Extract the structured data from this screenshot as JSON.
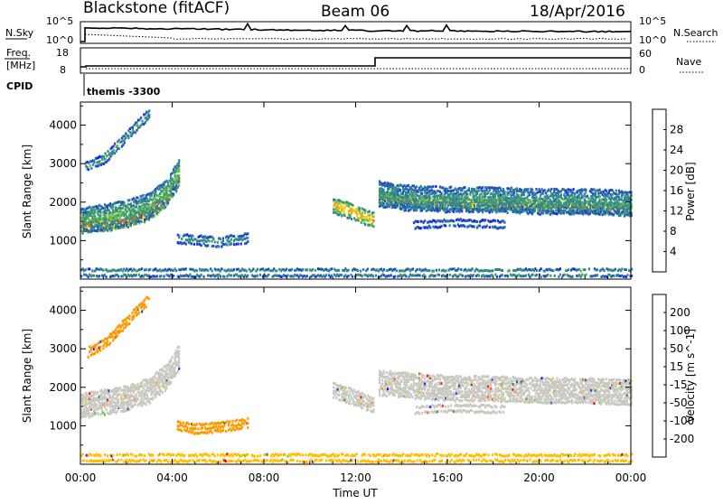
{
  "header": {
    "station": "Blackstone (fitACF)",
    "beam": "Beam 06",
    "date": "18/Apr/2016"
  },
  "panels": {
    "nsky_label": "N.Sky",
    "nsearch_label": "N.Search",
    "nsky_ticks": [
      "10^5",
      "10^0"
    ],
    "nsearch_ticks": [
      "10^5",
      "10^0"
    ],
    "freq_label": "Freq.",
    "freq_unit": "[MHz]",
    "freq_ticks": [
      "18",
      "8"
    ],
    "nave_label": "Nave",
    "nave_ticks": [
      "60",
      "0"
    ],
    "cpid_label": "CPID",
    "cpid_value": "themis -3300"
  },
  "colors": {
    "power": [
      "#1a1aff",
      "#2050c0",
      "#2e7f9a",
      "#3f9a70",
      "#6ec040",
      "#f0d020",
      "#f8a000",
      "#ff6000",
      "#ff2000",
      "#e00000"
    ],
    "velocity": [
      "#ff0000",
      "#ff5500",
      "#ff9900",
      "#ffbf00",
      "#c8c8c0",
      "#66cc33",
      "#2d8a4e",
      "#1f4fbf",
      "#1a1aff"
    ],
    "gray": "#c8c8c0"
  },
  "chart_data": [
    {
      "type": "heatmap",
      "name": "power",
      "ylabel": "Slant Range [km]",
      "yticks": [
        1000,
        2000,
        3000,
        4000
      ],
      "ylim": [
        0,
        4600
      ],
      "xlim": [
        0,
        24
      ],
      "colorbar_label": "Power [dB]",
      "colorbar_ticks": [
        4,
        8,
        12,
        16,
        20,
        24,
        28
      ],
      "features": [
        {
          "kind": "band",
          "x": [
            0.0,
            1.0,
            2.0,
            3.0,
            3.8,
            4.3
          ],
          "y": [
            1400,
            1400,
            1500,
            1700,
            2100,
            2600
          ],
          "width": 300,
          "level": 26
        },
        {
          "kind": "band",
          "x": [
            0.0,
            1.0,
            2.0,
            3.0,
            3.8,
            4.3
          ],
          "y": [
            1500,
            1600,
            1700,
            1900,
            2300,
            2800
          ],
          "width": 600,
          "level": 12
        },
        {
          "kind": "band",
          "x": [
            0.2,
            1.0,
            2.0,
            3.0
          ],
          "y": [
            2900,
            3100,
            3700,
            4300
          ],
          "width": 200,
          "level": 10
        },
        {
          "kind": "band",
          "x": [
            4.2,
            5.0,
            6.0,
            7.3
          ],
          "y": [
            1050,
            1000,
            950,
            1050
          ],
          "width": 200,
          "level": 9
        },
        {
          "kind": "band",
          "x": [
            11.0,
            11.5,
            12.0,
            12.8
          ],
          "y": [
            1900,
            1800,
            1700,
            1500
          ],
          "width": 350,
          "level": 20
        },
        {
          "kind": "band",
          "x": [
            13.0,
            14.0,
            16.0,
            18.0,
            20.0,
            22.0,
            24.0
          ],
          "y": [
            2100,
            2000,
            1950,
            1900,
            1900,
            1850,
            1800
          ],
          "width": 250,
          "level": 22
        },
        {
          "kind": "band",
          "x": [
            13.0,
            14.0,
            16.0,
            18.0,
            20.0,
            22.0,
            24.0
          ],
          "y": [
            2200,
            2100,
            2050,
            2050,
            2000,
            2000,
            1950
          ],
          "width": 600,
          "level": 10
        },
        {
          "kind": "band",
          "x": [
            14.5,
            16.5,
            18.5
          ],
          "y": [
            1400,
            1450,
            1400
          ],
          "width": 150,
          "level": 8
        },
        {
          "kind": "band",
          "x": [
            0.0,
            6.0,
            12.0,
            18.0,
            24.0
          ],
          "y": [
            150,
            150,
            150,
            150,
            150
          ],
          "width": 150,
          "level": 14
        }
      ]
    },
    {
      "type": "heatmap",
      "name": "velocity",
      "ylabel": "Slant Range [km]",
      "yticks": [
        1000,
        2000,
        3000,
        4000
      ],
      "ylim": [
        0,
        4600
      ],
      "xlim": [
        0,
        24
      ],
      "xlabel": "Time UT",
      "xticks": [
        "00:00",
        "04:00",
        "08:00",
        "12:00",
        "16:00",
        "20:00",
        "00:00"
      ],
      "colorbar_label": "Velocity [m s^-1]",
      "colorbar_ticks": [
        200,
        100,
        50,
        15,
        -15,
        -50,
        -100,
        -200
      ],
      "features": [
        {
          "kind": "band",
          "x": [
            0.0,
            1.0,
            2.0,
            3.0,
            3.8,
            4.3
          ],
          "y": [
            1500,
            1600,
            1700,
            1900,
            2300,
            2800
          ],
          "width": 600,
          "level": 0
        },
        {
          "kind": "band",
          "x": [
            0.3,
            1.0,
            2.0,
            3.0
          ],
          "y": [
            2900,
            3100,
            3700,
            4300
          ],
          "width": 200,
          "level": -60
        },
        {
          "kind": "band",
          "x": [
            4.2,
            5.0,
            6.0,
            7.3
          ],
          "y": [
            1000,
            900,
            950,
            1050
          ],
          "width": 200,
          "level": -80
        },
        {
          "kind": "band",
          "x": [
            11.0,
            11.5,
            12.0,
            12.8
          ],
          "y": [
            1900,
            1800,
            1700,
            1500
          ],
          "width": 350,
          "level": 0
        },
        {
          "kind": "band",
          "x": [
            13.0,
            14.0,
            16.0,
            18.0,
            20.0,
            22.0,
            24.0
          ],
          "y": [
            2100,
            2050,
            1950,
            1950,
            1900,
            1900,
            1850
          ],
          "width": 600,
          "level": 0
        },
        {
          "kind": "band",
          "x": [
            14.5,
            16.5,
            18.5
          ],
          "y": [
            1400,
            1450,
            1400
          ],
          "width": 150,
          "level": 0
        },
        {
          "kind": "band",
          "x": [
            0.0,
            6.0,
            12.0,
            18.0,
            24.0
          ],
          "y": [
            150,
            150,
            150,
            150,
            150
          ],
          "width": 150,
          "level": -30
        }
      ]
    }
  ]
}
